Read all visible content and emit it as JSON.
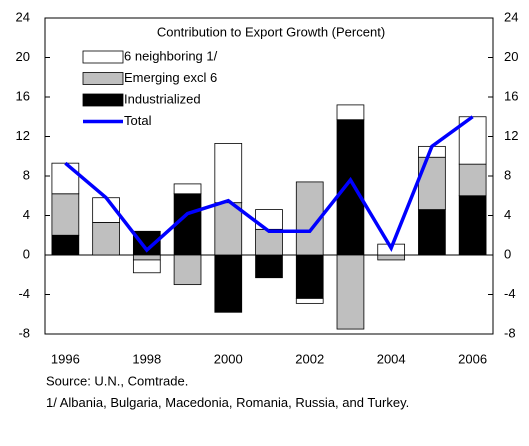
{
  "chart_data": {
    "type": "bar",
    "title": "Contribution to Export Growth (Percent)",
    "categories": [
      "1996",
      null,
      "1998",
      null,
      "2000",
      null,
      "2002",
      null,
      "2004",
      null,
      "2006"
    ],
    "series": [
      {
        "name": "Industrialized",
        "color": "#000000",
        "values": [
          2,
          0,
          2.4,
          6.2,
          -5.8,
          -2.3,
          -4.4,
          13.7,
          0,
          4.6,
          6
        ]
      },
      {
        "name": "Emerging excl 6",
        "color": "#bfbfbf",
        "values": [
          4.2,
          3.3,
          -0.5,
          -3,
          5.3,
          2.6,
          7.4,
          -7.5,
          -0.5,
          5.3,
          3.2
        ]
      },
      {
        "name": "6 neighboring  1/",
        "color": "#ffffff",
        "values": [
          3.1,
          2.5,
          -1.3,
          1,
          6,
          2,
          -0.5,
          1.5,
          1.1,
          1.1,
          4.8
        ]
      },
      {
        "name": "Total",
        "color": "#0000ff",
        "type": "line",
        "values": [
          9.3,
          5.8,
          0.5,
          4.2,
          5.5,
          2.4,
          2.4,
          7.6,
          0.7,
          11,
          14
        ]
      }
    ],
    "ylim": [
      -8,
      24
    ],
    "yticks": [
      -8,
      -4,
      0,
      4,
      8,
      12,
      16,
      20,
      24
    ],
    "y2lim": [
      -8,
      24
    ],
    "y2ticks": [
      -8,
      -4,
      0,
      4,
      8,
      12,
      16,
      20,
      24
    ],
    "source": "Source: U.N., Comtrade.",
    "note": "1/ Albania, Bulgaria, Macedonia, Romania, Russia, and Turkey."
  }
}
